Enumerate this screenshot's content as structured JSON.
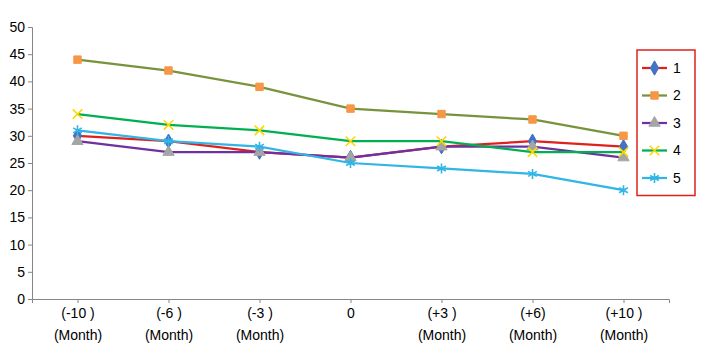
{
  "chart_data": {
    "type": "line",
    "categories": [
      "(-10 )\n(Month)",
      "(-6 )\n(Month)",
      "(-3 )\n(Month)",
      "0",
      "(+3 )\n(Month)",
      "(+6)\n(Month)",
      "(+10 )\n(Month)"
    ],
    "series": [
      {
        "name": "1",
        "color": "#e0201b",
        "marker": "diamond",
        "values": [
          30,
          29,
          27,
          26,
          28,
          29,
          28
        ]
      },
      {
        "name": "2",
        "color": "#77933c",
        "marker": "square",
        "values": [
          44,
          42,
          39,
          35,
          34,
          33,
          30
        ]
      },
      {
        "name": "3",
        "color": "#7030a0",
        "marker": "triangle",
        "values": [
          29,
          27,
          27,
          26,
          28,
          28,
          26
        ]
      },
      {
        "name": "4",
        "color": "#00b050",
        "marker": "x",
        "values": [
          34,
          32,
          31,
          29,
          29,
          27,
          27
        ]
      },
      {
        "name": "5",
        "color": "#31b5e6",
        "marker": "star",
        "values": [
          31,
          29,
          28,
          25,
          24,
          23,
          20
        ]
      }
    ],
    "ylim": [
      0,
      50
    ],
    "yticks": [
      0,
      5,
      10,
      15,
      20,
      25,
      30,
      35,
      40,
      45,
      50
    ],
    "grid": false,
    "legend": "right"
  }
}
